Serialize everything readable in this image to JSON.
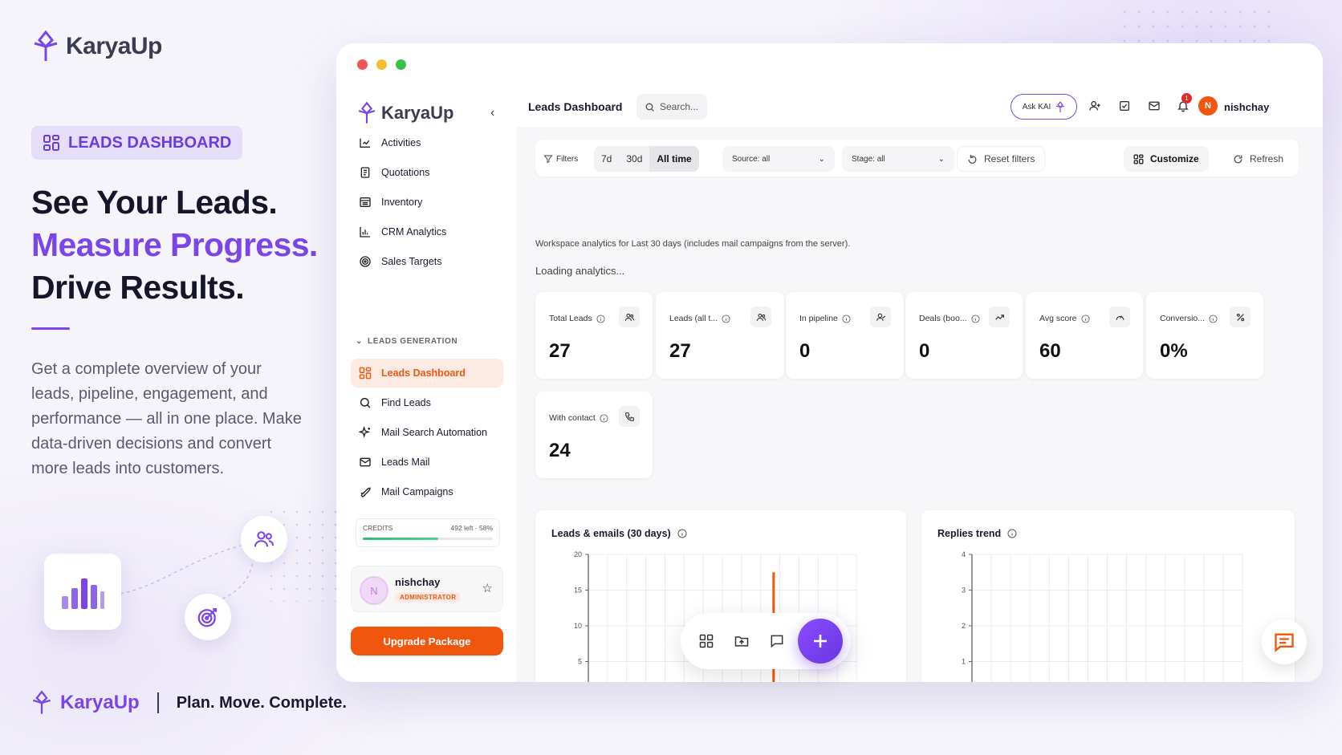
{
  "brand": {
    "name": "KaryaUp",
    "tagline": "Plan. Move. Complete.",
    "accent": "#7b45ea",
    "orange": "#f0560e"
  },
  "marketing": {
    "badge": "LEADS DASHBOARD",
    "headline": [
      "See Your Leads.",
      "Measure Progress.",
      "Drive Results."
    ],
    "description": "Get a complete overview of your leads, pipeline, engagement, and performance — all in one place. Make data-driven decisions and convert more leads into customers."
  },
  "sidebar": {
    "items": [
      {
        "label": "Activities",
        "icon": "activities-icon"
      },
      {
        "label": "Quotations",
        "icon": "quotations-icon"
      },
      {
        "label": "Inventory",
        "icon": "inventory-icon"
      },
      {
        "label": "CRM Analytics",
        "icon": "bar-chart-icon"
      },
      {
        "label": "Sales Targets",
        "icon": "target-icon"
      }
    ],
    "section_title": "LEADS GENERATION",
    "section_items": [
      {
        "label": "Leads Dashboard",
        "icon": "grid-icon",
        "active": true
      },
      {
        "label": "Find Leads",
        "icon": "search-icon"
      },
      {
        "label": "Mail Search Automation",
        "icon": "sparkle-icon"
      },
      {
        "label": "Leads Mail",
        "icon": "mail-icon"
      },
      {
        "label": "Mail Campaigns",
        "icon": "rocket-icon"
      }
    ],
    "credits": {
      "label": "CREDITS",
      "value": "492 left · 58%",
      "percent": 58
    },
    "user": {
      "name": "nishchay",
      "initial": "N",
      "role": "ADMINISTRATOR"
    },
    "upgrade": "Upgrade Package"
  },
  "topbar": {
    "title": "Leads Dashboard",
    "search_placeholder": "Search...",
    "ask": "Ask KAI",
    "notifications": "1",
    "user_initial": "N",
    "user_name": "nishchay"
  },
  "filters": {
    "label": "Filters",
    "ranges": [
      "7d",
      "30d",
      "All time"
    ],
    "selected_range": "All time",
    "source": "Source: all",
    "stage": "Stage: all",
    "reset": "Reset filters",
    "customize": "Customize",
    "refresh": "Refresh"
  },
  "workspace_note": "Workspace analytics for Last 30 days (includes mail campaigns from the server).",
  "loading": "Loading analytics...",
  "kpis": [
    {
      "label": "Total Leads",
      "value": "27",
      "icon": "users-icon"
    },
    {
      "label": "Leads (all t...",
      "value": "27",
      "icon": "users-icon"
    },
    {
      "label": "In pipeline",
      "value": "0",
      "icon": "user-check-icon"
    },
    {
      "label": "Deals (boo...",
      "value": "0",
      "icon": "trending-up-icon"
    },
    {
      "label": "Avg score",
      "value": "60",
      "icon": "gauge-icon"
    },
    {
      "label": "Conversio...",
      "value": "0%",
      "icon": "percent-icon"
    },
    {
      "label": "With contact",
      "value": "24",
      "icon": "phone-icon"
    }
  ],
  "chart_data": [
    {
      "type": "bar",
      "title": "Leads & emails (30 days)",
      "ylim": [
        0,
        20
      ],
      "yticks": [
        "0",
        "5",
        "10",
        "15",
        "20"
      ],
      "values": [
        0,
        0,
        0,
        0,
        0,
        0,
        0,
        0,
        0,
        0,
        0,
        0,
        0,
        0,
        0,
        0,
        0,
        0,
        0,
        0,
        0,
        0,
        0,
        0,
        0,
        0,
        0,
        0,
        0,
        17.5
      ],
      "bar_index": 23,
      "bar_count": 34,
      "bar_color": "#f0560e"
    },
    {
      "type": "line",
      "title": "Replies trend",
      "ylim": [
        0,
        4
      ],
      "yticks": [
        "0",
        "1",
        "2",
        "3",
        "4"
      ],
      "values": []
    }
  ]
}
